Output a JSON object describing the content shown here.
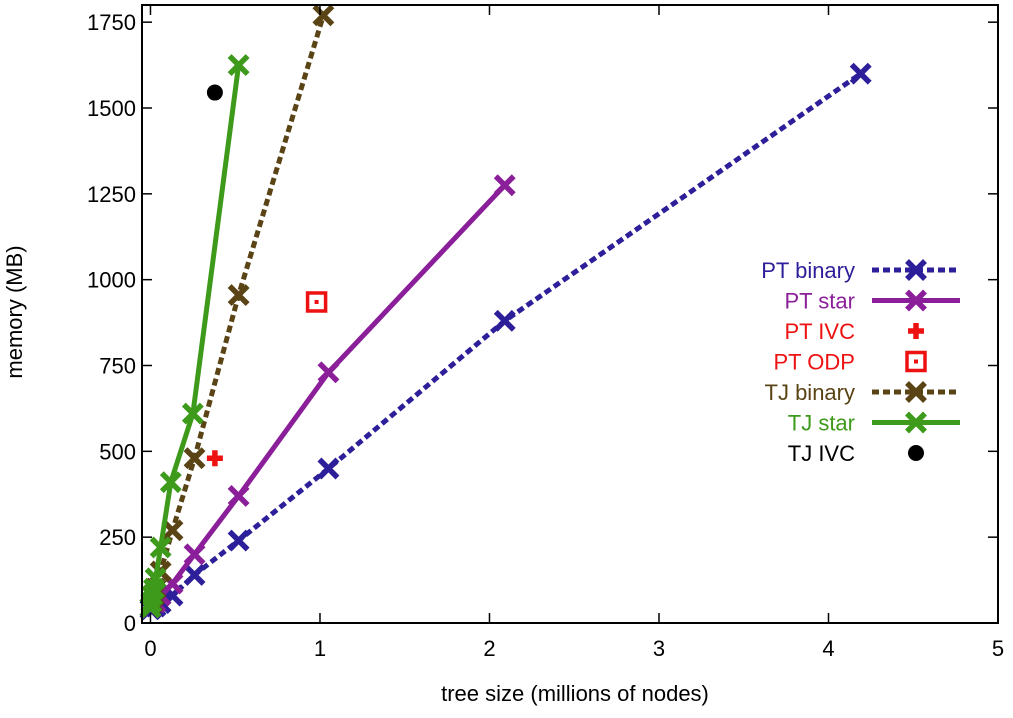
{
  "chart_data": {
    "type": "line",
    "title": "",
    "xlabel": "tree size (millions of nodes)",
    "ylabel": "memory (MB)",
    "xlim": [
      -0.05,
      5
    ],
    "ylim": [
      0,
      1800
    ],
    "x_ticks": [
      0,
      1,
      2,
      3,
      4,
      5
    ],
    "y_ticks": [
      0,
      250,
      500,
      750,
      1000,
      1250,
      1500,
      1750
    ],
    "grid": false,
    "legend_position": "right",
    "series": [
      {
        "name": "PT binary",
        "color": "#2d1e99",
        "line": "dotted",
        "marker": "cross",
        "x": [
          0,
          0.03,
          0.06,
          0.13,
          0.26,
          0.52,
          1.05,
          2.09,
          4.19
        ],
        "y": [
          40,
          48,
          58,
          80,
          140,
          240,
          450,
          880,
          1600
        ]
      },
      {
        "name": "PT star",
        "color": "#8b1f9a",
        "line": "solid",
        "marker": "cross",
        "x": [
          0,
          0.03,
          0.06,
          0.13,
          0.26,
          0.52,
          1.05,
          2.09
        ],
        "y": [
          45,
          60,
          80,
          115,
          200,
          370,
          730,
          1275
        ]
      },
      {
        "name": "PT IVC",
        "color": "#ee1111",
        "line": "none",
        "marker": "plus",
        "x": [
          0.38
        ],
        "y": [
          480
        ]
      },
      {
        "name": "PT ODP",
        "color": "#ee1111",
        "line": "none",
        "marker": "square",
        "x": [
          0.98
        ],
        "y": [
          935
        ]
      },
      {
        "name": "TJ binary",
        "color": "#5a4314",
        "line": "dotted",
        "marker": "cross",
        "x": [
          0,
          0.01,
          0.02,
          0.03,
          0.06,
          0.13,
          0.26,
          0.52,
          1.02
        ],
        "y": [
          45,
          60,
          80,
          100,
          150,
          270,
          480,
          955,
          1770
        ]
      },
      {
        "name": "TJ star",
        "color": "#3d9a1a",
        "line": "solid",
        "marker": "cross",
        "x": [
          0,
          0.005,
          0.01,
          0.02,
          0.03,
          0.06,
          0.12,
          0.25,
          0.52
        ],
        "y": [
          45,
          60,
          80,
          100,
          130,
          220,
          410,
          610,
          1625
        ]
      },
      {
        "name": "TJ IVC",
        "color": "#000000",
        "line": "none",
        "marker": "circle",
        "x": [
          0.38
        ],
        "y": [
          1545
        ]
      }
    ]
  }
}
